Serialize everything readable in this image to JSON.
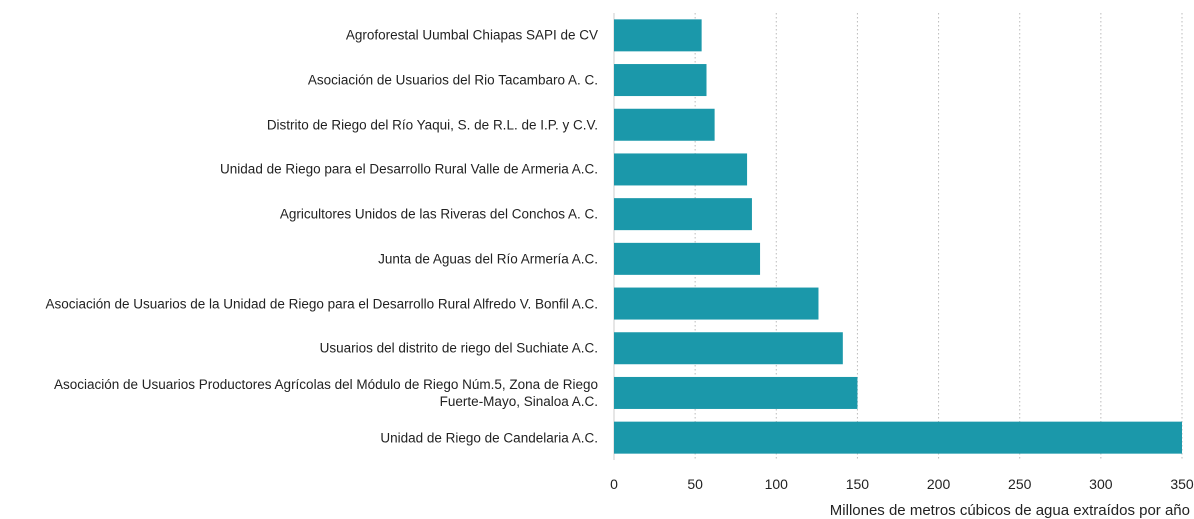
{
  "chart_data": {
    "type": "bar",
    "orientation": "horizontal",
    "categories": [
      "Agroforestal Uumbal Chiapas SAPI de CV",
      "Asociación de Usuarios del Rio Tacambaro A. C.",
      "Distrito de Riego del Río Yaqui, S. de R.L. de I.P. y C.V.",
      "Unidad de Riego para el Desarrollo Rural Valle de Armeria A.C.",
      "Agricultores Unidos de las Riveras del Conchos A. C.",
      "Junta de Aguas del Río Armería A.C.",
      "Asociación de Usuarios de la Unidad de Riego para el Desarrollo Rural Alfredo V. Bonfil A.C.",
      "Usuarios del distrito de riego del Suchiate A.C.",
      "Asociación de Usuarios Productores Agrícolas del Módulo de Riego Núm.5, Zona de Riego Fuerte-Mayo, Sinaloa A.C.",
      "Unidad de Riego de Candelaria A.C."
    ],
    "values": [
      54,
      57,
      62,
      82,
      85,
      90,
      126,
      141,
      150,
      350
    ],
    "color": "#1b98aa",
    "xlabel": "Millones de metros cúbicos de agua extraídos por año",
    "xlim": [
      0,
      350
    ],
    "xticks": [
      0,
      50,
      100,
      150,
      200,
      250,
      300,
      350
    ],
    "grid": true
  }
}
